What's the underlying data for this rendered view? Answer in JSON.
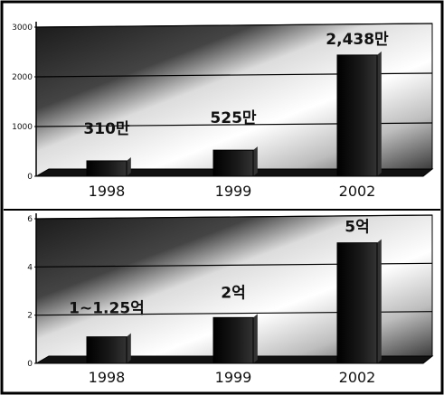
{
  "chart_data": [
    {
      "type": "bar",
      "categories": [
        "1998",
        "1999",
        "2002"
      ],
      "values": [
        310,
        525,
        2438
      ],
      "data_labels": [
        "310만",
        "525만",
        "2,438만"
      ],
      "ylim": [
        0,
        3000
      ],
      "yticks": [
        0,
        1000,
        2000,
        3000
      ],
      "ytick_labels": [
        "0",
        "1000",
        "2000",
        "3000"
      ],
      "grid": true,
      "bar_color": "#111111"
    },
    {
      "type": "bar",
      "categories": [
        "1998",
        "1999",
        "2002"
      ],
      "values": [
        1.1,
        1.9,
        5.0
      ],
      "data_labels": [
        "1~1.25억",
        "2억",
        "5억"
      ],
      "ylim": [
        0,
        6
      ],
      "yticks": [
        0,
        2,
        4,
        6
      ],
      "ytick_labels": [
        "0",
        "2",
        "4",
        "6"
      ],
      "grid": true,
      "bar_color": "#111111"
    }
  ]
}
